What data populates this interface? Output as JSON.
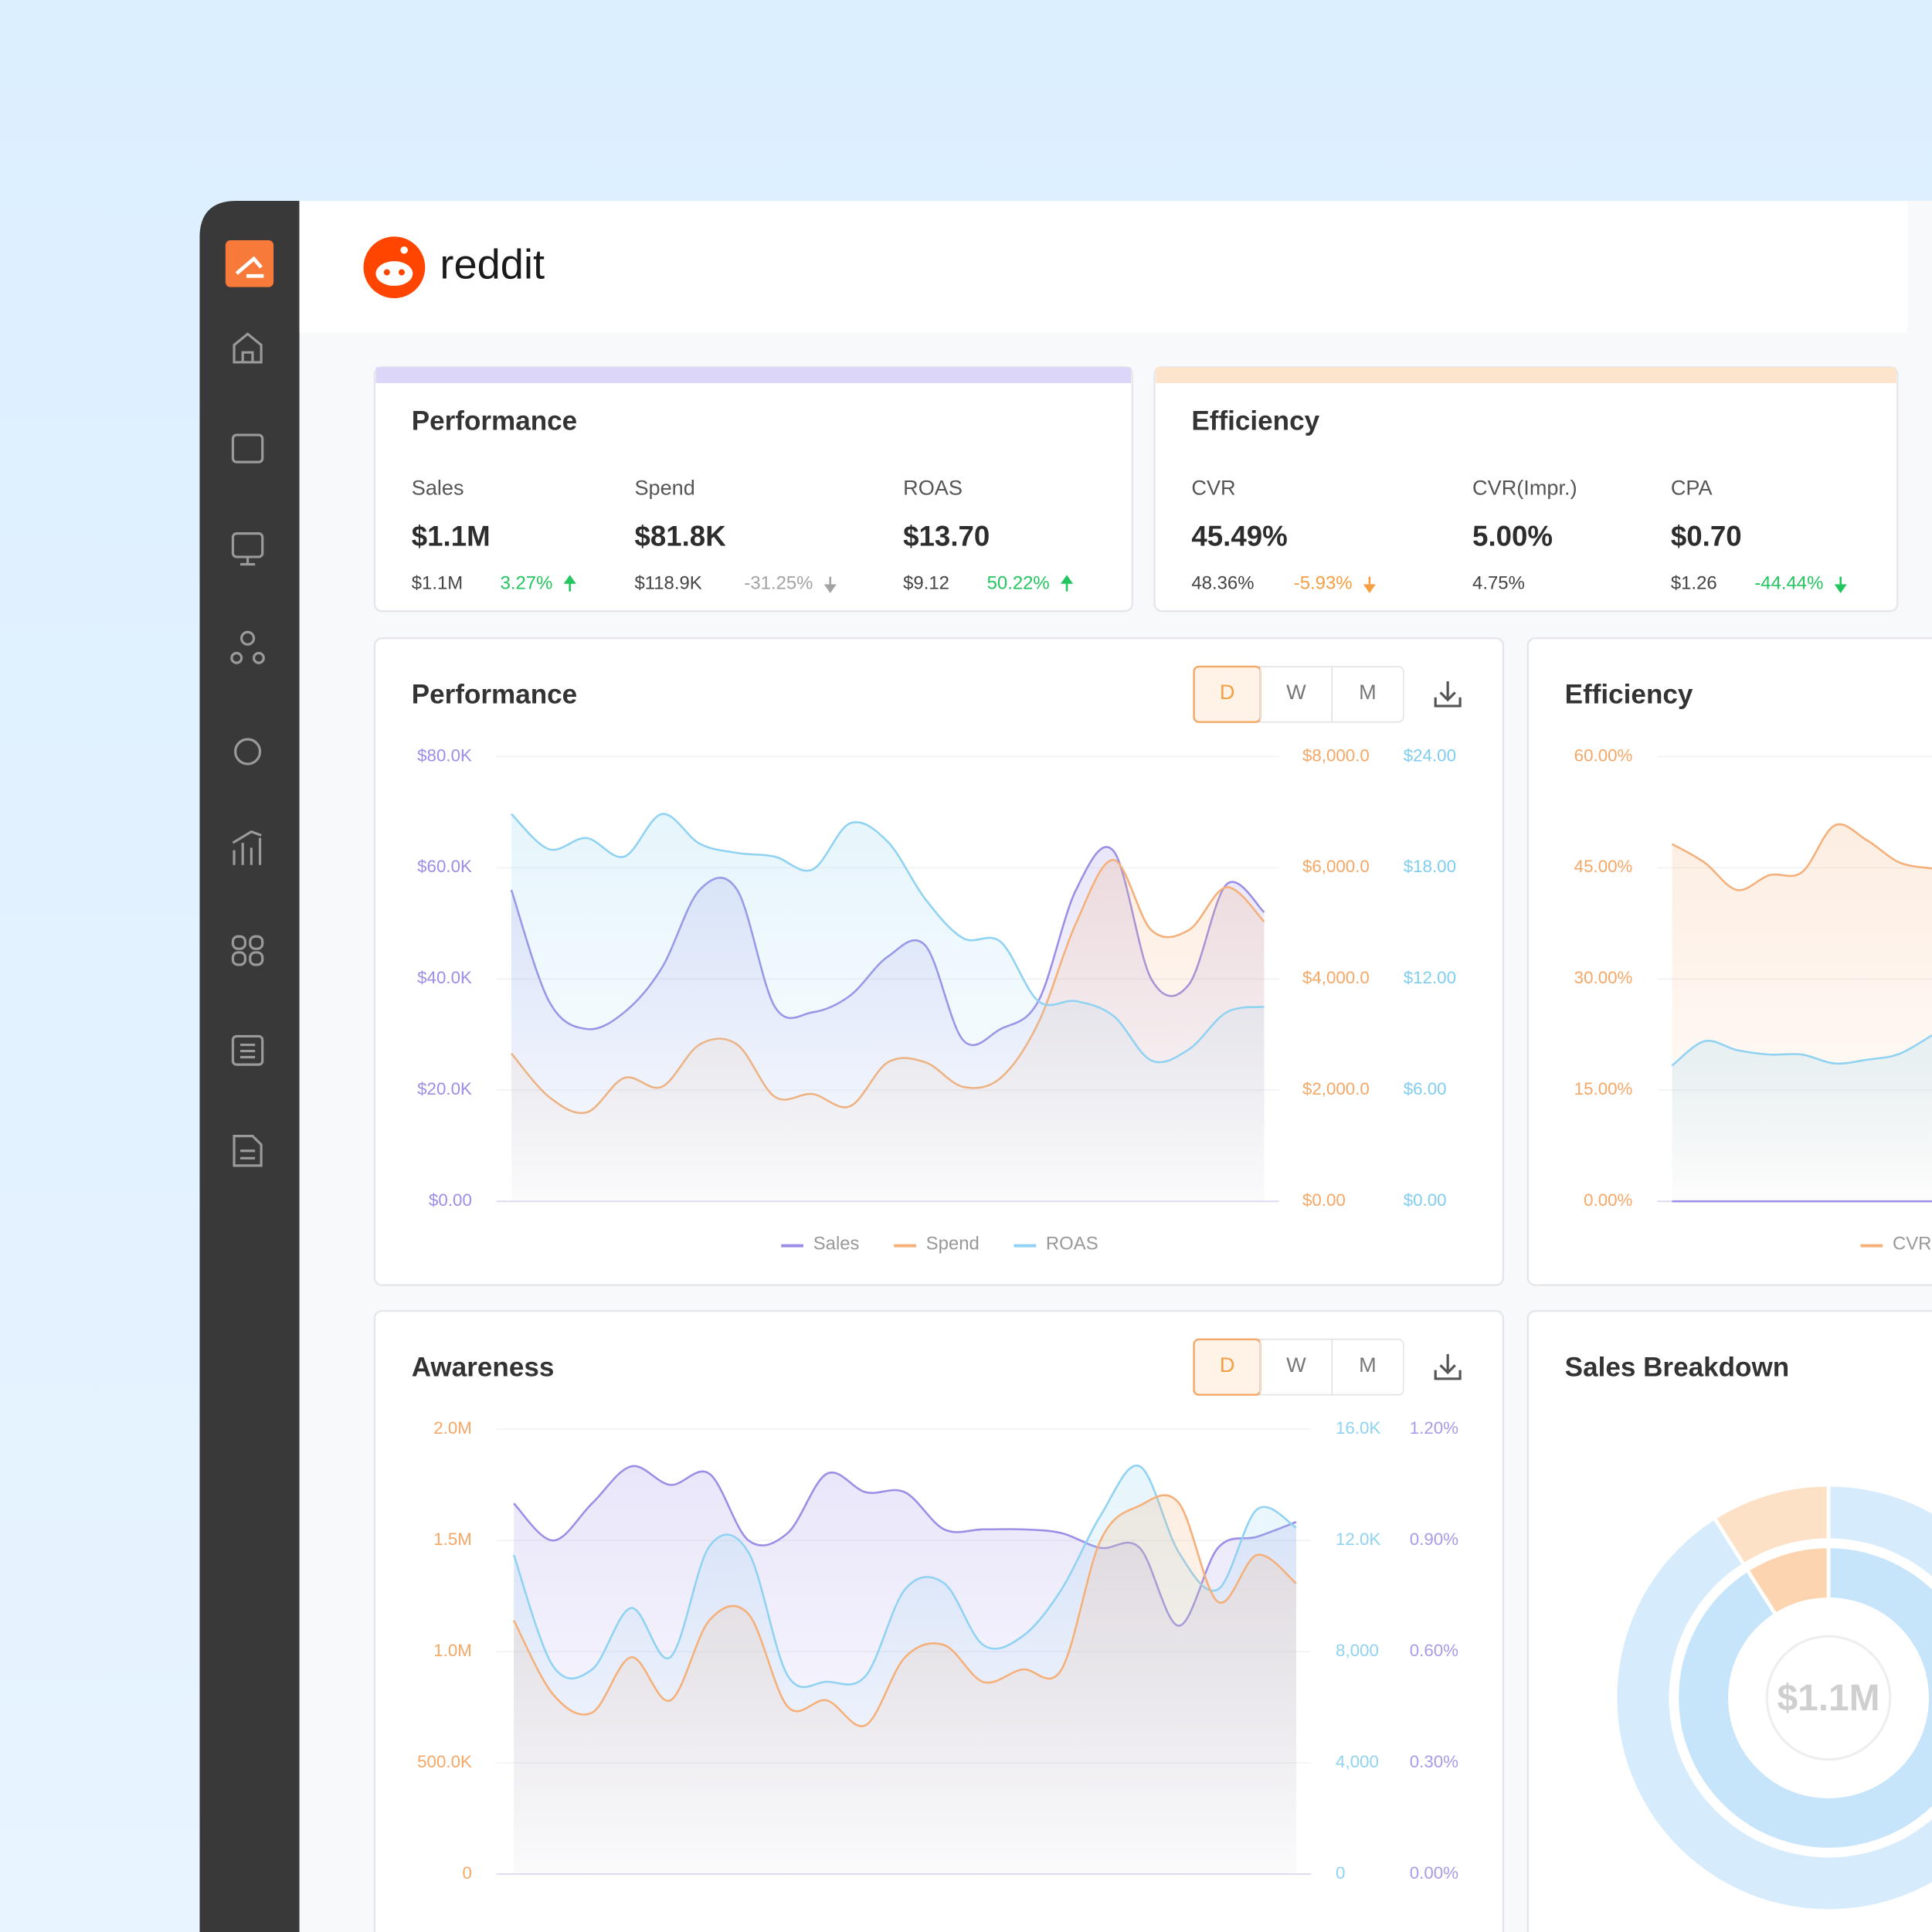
{
  "brand": "reddit",
  "kpi_cards": [
    {
      "title": "Performance",
      "stripe": "#dcd6f8",
      "metrics": [
        {
          "label": "Sales",
          "value": "$1.1M",
          "previous": "$1.1M",
          "change": "3.27%",
          "change_color": "#22c55e"
        },
        {
          "label": "Spend",
          "value": "$81.8K",
          "previous": "$118.9K",
          "change": "-31.25%",
          "change_color": "#a3a3a3"
        },
        {
          "label": "ROAS",
          "value": "$13.70",
          "previous": "$9.12",
          "change": "50.22%",
          "change_color": "#22c55e"
        }
      ]
    },
    {
      "title": "Efficiency",
      "stripe": "#fde4cd",
      "metrics": [
        {
          "label": "CVR",
          "value": "45.49%",
          "previous": "48.36%",
          "change": "-5.93%",
          "change_color": "#f59e42"
        },
        {
          "label": "CVR(Impr.)",
          "value": "5.00%",
          "previous": "4.75%"
        },
        {
          "label": "CPA",
          "value": "$0.70",
          "previous": "$1.26",
          "change": "-44.44%",
          "change_color": "#22c55e"
        }
      ]
    }
  ],
  "chart_data": [
    {
      "type": "line",
      "title": "Performance",
      "buttons": [
        "D",
        "W",
        "M"
      ],
      "ylim": [
        0,
        80000
      ],
      "yticks": [
        {
          "value": 0,
          "label": "$0.00"
        },
        {
          "value": 20000,
          "label": "$20.0K"
        },
        {
          "value": 40000,
          "label": "$40.0K"
        },
        {
          "value": 60000,
          "label": "$60.0K"
        },
        {
          "value": 80000,
          "label": "$80.0K"
        }
      ],
      "y2lim": [
        0,
        8000
      ],
      "y2ticks": [
        {
          "value": 0,
          "label": "$0.00"
        },
        {
          "value": 2000,
          "label": "$2,000.0"
        },
        {
          "value": 4000,
          "label": "$4,000.0"
        },
        {
          "value": 6000,
          "label": "$6,000.0"
        },
        {
          "value": 8000,
          "label": "$8,000.0"
        }
      ],
      "y3lim": [
        0,
        24
      ],
      "y3ticks": [
        {
          "value": 0,
          "label": "$0.00"
        },
        {
          "value": 6,
          "label": "$6.00"
        },
        {
          "value": 12,
          "label": "$12.00"
        },
        {
          "value": 18,
          "label": "$18.00"
        },
        {
          "value": 24,
          "label": "$24.00"
        }
      ],
      "series": [
        {
          "name": "Sales",
          "color": "#9b8ee6",
          "axis": "y",
          "values": [
            56000,
            36000,
            31000,
            34000,
            42000,
            56000,
            56000,
            35000,
            34000,
            37000,
            44000,
            46000,
            29000,
            31000,
            36000,
            56000,
            63000,
            40000,
            39000,
            57000,
            52000
          ]
        },
        {
          "name": "Spend",
          "color": "#f5b07a",
          "axis": "y2",
          "values": [
            2660,
            1880,
            1600,
            2220,
            2060,
            2820,
            2820,
            1880,
            1930,
            1710,
            2500,
            2500,
            2060,
            2220,
            3210,
            5000,
            6140,
            4880,
            4880,
            5650,
            5030
          ]
        },
        {
          "name": "ROAS",
          "color": "#8fd2f2",
          "axis": "y3",
          "values": [
            20.9,
            19.0,
            19.6,
            18.6,
            20.9,
            19.3,
            18.8,
            18.6,
            17.9,
            20.4,
            19.4,
            16.3,
            14.2,
            14.0,
            10.8,
            10.8,
            10.0,
            7.6,
            8.2,
            10.2,
            10.5
          ]
        }
      ]
    },
    {
      "type": "line",
      "title": "Efficiency",
      "ylim": [
        0,
        60
      ],
      "yticks": [
        {
          "value": 0,
          "label": "0.00%"
        },
        {
          "value": 15,
          "label": "15.00%"
        },
        {
          "value": 30,
          "label": "30.00%"
        },
        {
          "value": 45,
          "label": "45.00%"
        },
        {
          "value": 60,
          "label": "60.00%"
        }
      ],
      "series": [
        {
          "name": "CVR",
          "color": "#f5b07a",
          "axis": "y",
          "values": [
            48.2,
            45.7,
            42,
            44,
            44.4,
            50.7,
            48.7,
            45.7,
            44.9
          ]
        },
        {
          "color": "#8fd2f2",
          "axis": "y",
          "values": [
            18.3,
            21.6,
            20.4,
            19.8,
            19.8,
            18.6,
            19.1,
            19.9,
            22.4
          ]
        },
        {
          "color": "#9b8ee6",
          "axis": "y",
          "values": [
            0,
            0,
            0,
            0,
            0,
            0,
            0,
            0,
            0
          ]
        }
      ]
    },
    {
      "type": "line",
      "title": "Awareness",
      "buttons": [
        "D",
        "W",
        "M"
      ],
      "ylim": [
        0,
        2000000
      ],
      "yticks": [
        0,
        {
          "value": 500000,
          "label": "500.0K"
        },
        {
          "value": 1000000,
          "label": "1.0M"
        },
        {
          "value": 1500000,
          "label": "1.5M"
        },
        {
          "value": 2000000,
          "label": "2.0M"
        }
      ],
      "y2lim": [
        0,
        16000
      ],
      "y2ticks": [
        0,
        {
          "value": 4000,
          "label": "4,000"
        },
        {
          "value": 8000,
          "label": "8,000"
        },
        {
          "value": 12000,
          "label": "12.0K"
        },
        {
          "value": 16000,
          "label": "16.0K"
        }
      ],
      "y3lim": [
        0,
        1.2
      ],
      "y3ticks": [
        {
          "value": 0,
          "label": "0.00%"
        },
        {
          "value": 0.3,
          "label": "0.30%"
        },
        {
          "value": 0.6,
          "label": "0.60%"
        },
        {
          "value": 0.9,
          "label": "0.90%"
        },
        {
          "value": 1.2,
          "label": "1.20%"
        }
      ],
      "series": [
        {
          "color": "#9b8ee6",
          "axis": "y3",
          "values": [
            1.0,
            0.9,
            1.0,
            1.1,
            1.05,
            1.08,
            0.9,
            0.92,
            1.08,
            1.03,
            1.03,
            0.93,
            0.93,
            0.93,
            0.92,
            0.88,
            0.88,
            0.67,
            0.88,
            0.91,
            0.95
          ]
        },
        {
          "color": "#8fd2f2",
          "axis": "y2",
          "values": [
            11480,
            7490,
            7360,
            9570,
            7800,
            11790,
            11570,
            7140,
            6920,
            7140,
            10240,
            10460,
            8240,
            8550,
            10240,
            12900,
            14670,
            11570,
            10240,
            13120,
            12460
          ]
        },
        {
          "color": "#f5b07a",
          "axis": "y",
          "values": [
            1141000,
            809000,
            726000,
            975000,
            781000,
            1141000,
            1169000,
            753000,
            781000,
            670000,
            975000,
            1030000,
            864000,
            920000,
            920000,
            1501000,
            1657000,
            1668000,
            1224000,
            1435000,
            1307000
          ]
        }
      ]
    },
    {
      "type": "donut",
      "title": "Sales Breakdown",
      "center_label": "$1.1M",
      "rings": [
        {
          "values": [
            91,
            9
          ],
          "colors": [
            "#d6ebfb",
            "#fde1c6"
          ]
        },
        {
          "values": [
            91,
            9
          ],
          "colors": [
            "#c6e4fa",
            "#fcd5b0"
          ]
        }
      ]
    }
  ]
}
